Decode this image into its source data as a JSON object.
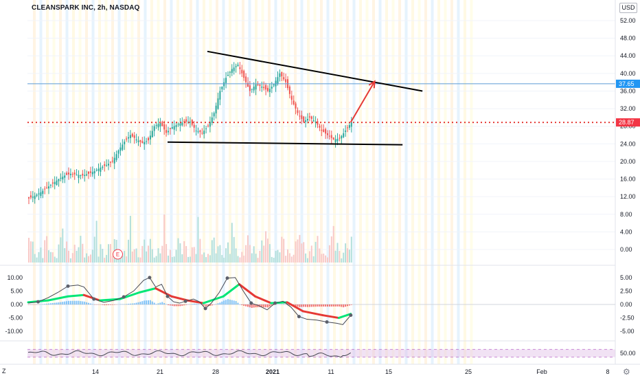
{
  "header": {
    "title": "CLEANSPARK INC, 2h, NASDAQ",
    "currency": "USD"
  },
  "controls": {
    "scale_mode_label": "Z",
    "settings_icon": "gear-icon"
  },
  "chart_data": {
    "type": "candlestick",
    "symbol": "CLEANSPARK INC",
    "interval": "2h",
    "exchange": "NASDAQ",
    "x_tick_labels": [
      "14",
      "21",
      "28",
      "2021",
      "11",
      "15",
      "25",
      "Feb",
      "8"
    ],
    "price_axis": {
      "ticks": [
        "52.00",
        "48.00",
        "44.00",
        "40.00",
        "36.00",
        "32.00",
        "28.00",
        "24.00",
        "20.00",
        "16.00",
        "12.00",
        "8.00",
        "4.00",
        "0.00"
      ],
      "ylim": [
        -1,
        55
      ]
    },
    "price_labels": [
      {
        "value": 37.65,
        "text": "37.65",
        "color": "#2196f3"
      },
      {
        "value": 28.87,
        "text": "28.87",
        "color": "#f23645"
      }
    ],
    "close_path": [
      {
        "x": 0,
        "y": 11.6
      },
      {
        "x": 3,
        "y": 12.2
      },
      {
        "x": 6,
        "y": 13.0
      },
      {
        "x": 9,
        "y": 14.0
      },
      {
        "x": 12,
        "y": 15.0
      },
      {
        "x": 15,
        "y": 16.0
      },
      {
        "x": 18,
        "y": 16.8
      },
      {
        "x": 21,
        "y": 17.2
      },
      {
        "x": 24,
        "y": 17.0
      },
      {
        "x": 27,
        "y": 16.8
      },
      {
        "x": 30,
        "y": 17.2
      },
      {
        "x": 33,
        "y": 17.8
      },
      {
        "x": 36,
        "y": 18.6
      },
      {
        "x": 39,
        "y": 19.2
      },
      {
        "x": 42,
        "y": 20.0
      },
      {
        "x": 45,
        "y": 22.5
      },
      {
        "x": 48,
        "y": 24.5
      },
      {
        "x": 51,
        "y": 26.0
      },
      {
        "x": 54,
        "y": 25.0
      },
      {
        "x": 57,
        "y": 24.2
      },
      {
        "x": 60,
        "y": 24.8
      },
      {
        "x": 63,
        "y": 28.0
      },
      {
        "x": 66,
        "y": 28.8
      },
      {
        "x": 69,
        "y": 26.5
      },
      {
        "x": 72,
        "y": 27.8
      },
      {
        "x": 75,
        "y": 28.5
      },
      {
        "x": 78,
        "y": 29.0
      },
      {
        "x": 81,
        "y": 29.0
      },
      {
        "x": 84,
        "y": 27.0
      },
      {
        "x": 87,
        "y": 26.5
      },
      {
        "x": 90,
        "y": 28.0
      },
      {
        "x": 93,
        "y": 31.0
      },
      {
        "x": 96,
        "y": 36.0
      },
      {
        "x": 99,
        "y": 39.0
      },
      {
        "x": 102,
        "y": 41.0
      },
      {
        "x": 105,
        "y": 42.0
      },
      {
        "x": 108,
        "y": 39.0
      },
      {
        "x": 111,
        "y": 36.0
      },
      {
        "x": 114,
        "y": 37.5
      },
      {
        "x": 117,
        "y": 37.0
      },
      {
        "x": 120,
        "y": 36.0
      },
      {
        "x": 123,
        "y": 37.5
      },
      {
        "x": 126,
        "y": 40.0
      },
      {
        "x": 129,
        "y": 38.0
      },
      {
        "x": 132,
        "y": 34.0
      },
      {
        "x": 135,
        "y": 31.0
      },
      {
        "x": 138,
        "y": 29.0
      },
      {
        "x": 141,
        "y": 30.0
      },
      {
        "x": 144,
        "y": 29.0
      },
      {
        "x": 147,
        "y": 27.0
      },
      {
        "x": 150,
        "y": 26.0
      },
      {
        "x": 153,
        "y": 25.0
      },
      {
        "x": 156,
        "y": 25.2
      },
      {
        "x": 159,
        "y": 27.0
      },
      {
        "x": 162,
        "y": 28.9
      }
    ],
    "mark_colors": {
      "up": "#26a69a",
      "down": "#ef5350"
    },
    "annotations": {
      "upper_trendline": {
        "from": {
          "x": 90,
          "y": 45.0
        },
        "to": {
          "x": 198,
          "y": 36.0
        },
        "color": "#000000"
      },
      "lower_trendline": {
        "from": {
          "x": 70,
          "y": 24.4
        },
        "to": {
          "x": 188,
          "y": 23.8
        },
        "color": "#000000"
      },
      "projection_arrow": {
        "from": {
          "x": 162,
          "y": 28.9
        },
        "to": {
          "x": 174,
          "y": 38.2
        },
        "color": "#e53935"
      },
      "horizontal_lines": [
        {
          "value": 37.65,
          "color": "#5b9bd5",
          "style": "solid"
        },
        {
          "value": 28.87,
          "color": "#e53935",
          "style": "dotted"
        }
      ],
      "event_marker": {
        "x": 45,
        "label": "E"
      }
    },
    "oscillator": {
      "left_ticks": [
        "10.00",
        "5.00",
        "0.00",
        "-5.00",
        "-10.00"
      ],
      "right_ticks": [
        "5.00",
        "2.50",
        "0.00",
        "-2.50",
        "-5.00"
      ],
      "line": [
        {
          "x": 0,
          "y": 0.5
        },
        {
          "x": 5,
          "y": 1.0
        },
        {
          "x": 10,
          "y": 2.5
        },
        {
          "x": 15,
          "y": 4.5
        },
        {
          "x": 20,
          "y": 6.8
        },
        {
          "x": 25,
          "y": 7.2
        },
        {
          "x": 28,
          "y": 6.5
        },
        {
          "x": 33,
          "y": 2.0
        },
        {
          "x": 38,
          "y": 0.8
        },
        {
          "x": 43,
          "y": 1.5
        },
        {
          "x": 48,
          "y": 2.8
        },
        {
          "x": 53,
          "y": 5.0
        },
        {
          "x": 58,
          "y": 9.0
        },
        {
          "x": 61,
          "y": 10.0
        },
        {
          "x": 64,
          "y": 6.5
        },
        {
          "x": 67,
          "y": 7.5
        },
        {
          "x": 70,
          "y": 3.0
        },
        {
          "x": 73,
          "y": 1.0
        },
        {
          "x": 76,
          "y": 0.5
        },
        {
          "x": 79,
          "y": 1.2
        },
        {
          "x": 83,
          "y": 2.0
        },
        {
          "x": 86,
          "y": 1.0
        },
        {
          "x": 89,
          "y": -1.5
        },
        {
          "x": 92,
          "y": 0.5
        },
        {
          "x": 96,
          "y": 4.5
        },
        {
          "x": 100,
          "y": 9.8
        },
        {
          "x": 104,
          "y": 10.0
        },
        {
          "x": 108,
          "y": 5.0
        },
        {
          "x": 112,
          "y": 0.5
        },
        {
          "x": 116,
          "y": -0.5
        },
        {
          "x": 120,
          "y": -2.0
        },
        {
          "x": 124,
          "y": 0.5
        },
        {
          "x": 128,
          "y": 1.2
        },
        {
          "x": 132,
          "y": -1.0
        },
        {
          "x": 136,
          "y": -4.5
        },
        {
          "x": 140,
          "y": -5.5
        },
        {
          "x": 145,
          "y": -5.8
        },
        {
          "x": 150,
          "y": -6.5
        },
        {
          "x": 155,
          "y": -7.0
        },
        {
          "x": 158,
          "y": -7.5
        },
        {
          "x": 162,
          "y": -4.0
        }
      ],
      "signal_line": [
        {
          "x": 0,
          "y": 0.8
        },
        {
          "x": 10,
          "y": 1.5
        },
        {
          "x": 20,
          "y": 3.0
        },
        {
          "x": 28,
          "y": 3.5
        },
        {
          "x": 36,
          "y": 1.5
        },
        {
          "x": 46,
          "y": 2.0
        },
        {
          "x": 56,
          "y": 4.5
        },
        {
          "x": 64,
          "y": 6.0
        },
        {
          "x": 72,
          "y": 3.0
        },
        {
          "x": 80,
          "y": 1.5
        },
        {
          "x": 88,
          "y": 0.5
        },
        {
          "x": 98,
          "y": 3.0
        },
        {
          "x": 106,
          "y": 7.5
        },
        {
          "x": 114,
          "y": 3.0
        },
        {
          "x": 122,
          "y": 0.5
        },
        {
          "x": 130,
          "y": 0.8
        },
        {
          "x": 138,
          "y": -2.5
        },
        {
          "x": 148,
          "y": -4.0
        },
        {
          "x": 156,
          "y": -5.0
        },
        {
          "x": 162,
          "y": -3.5
        }
      ],
      "ylim": [
        -12,
        12
      ]
    },
    "rsi": {
      "right_ticks": [
        "50.00"
      ],
      "band": [
        30,
        70
      ],
      "ylim": [
        0,
        100
      ]
    }
  }
}
